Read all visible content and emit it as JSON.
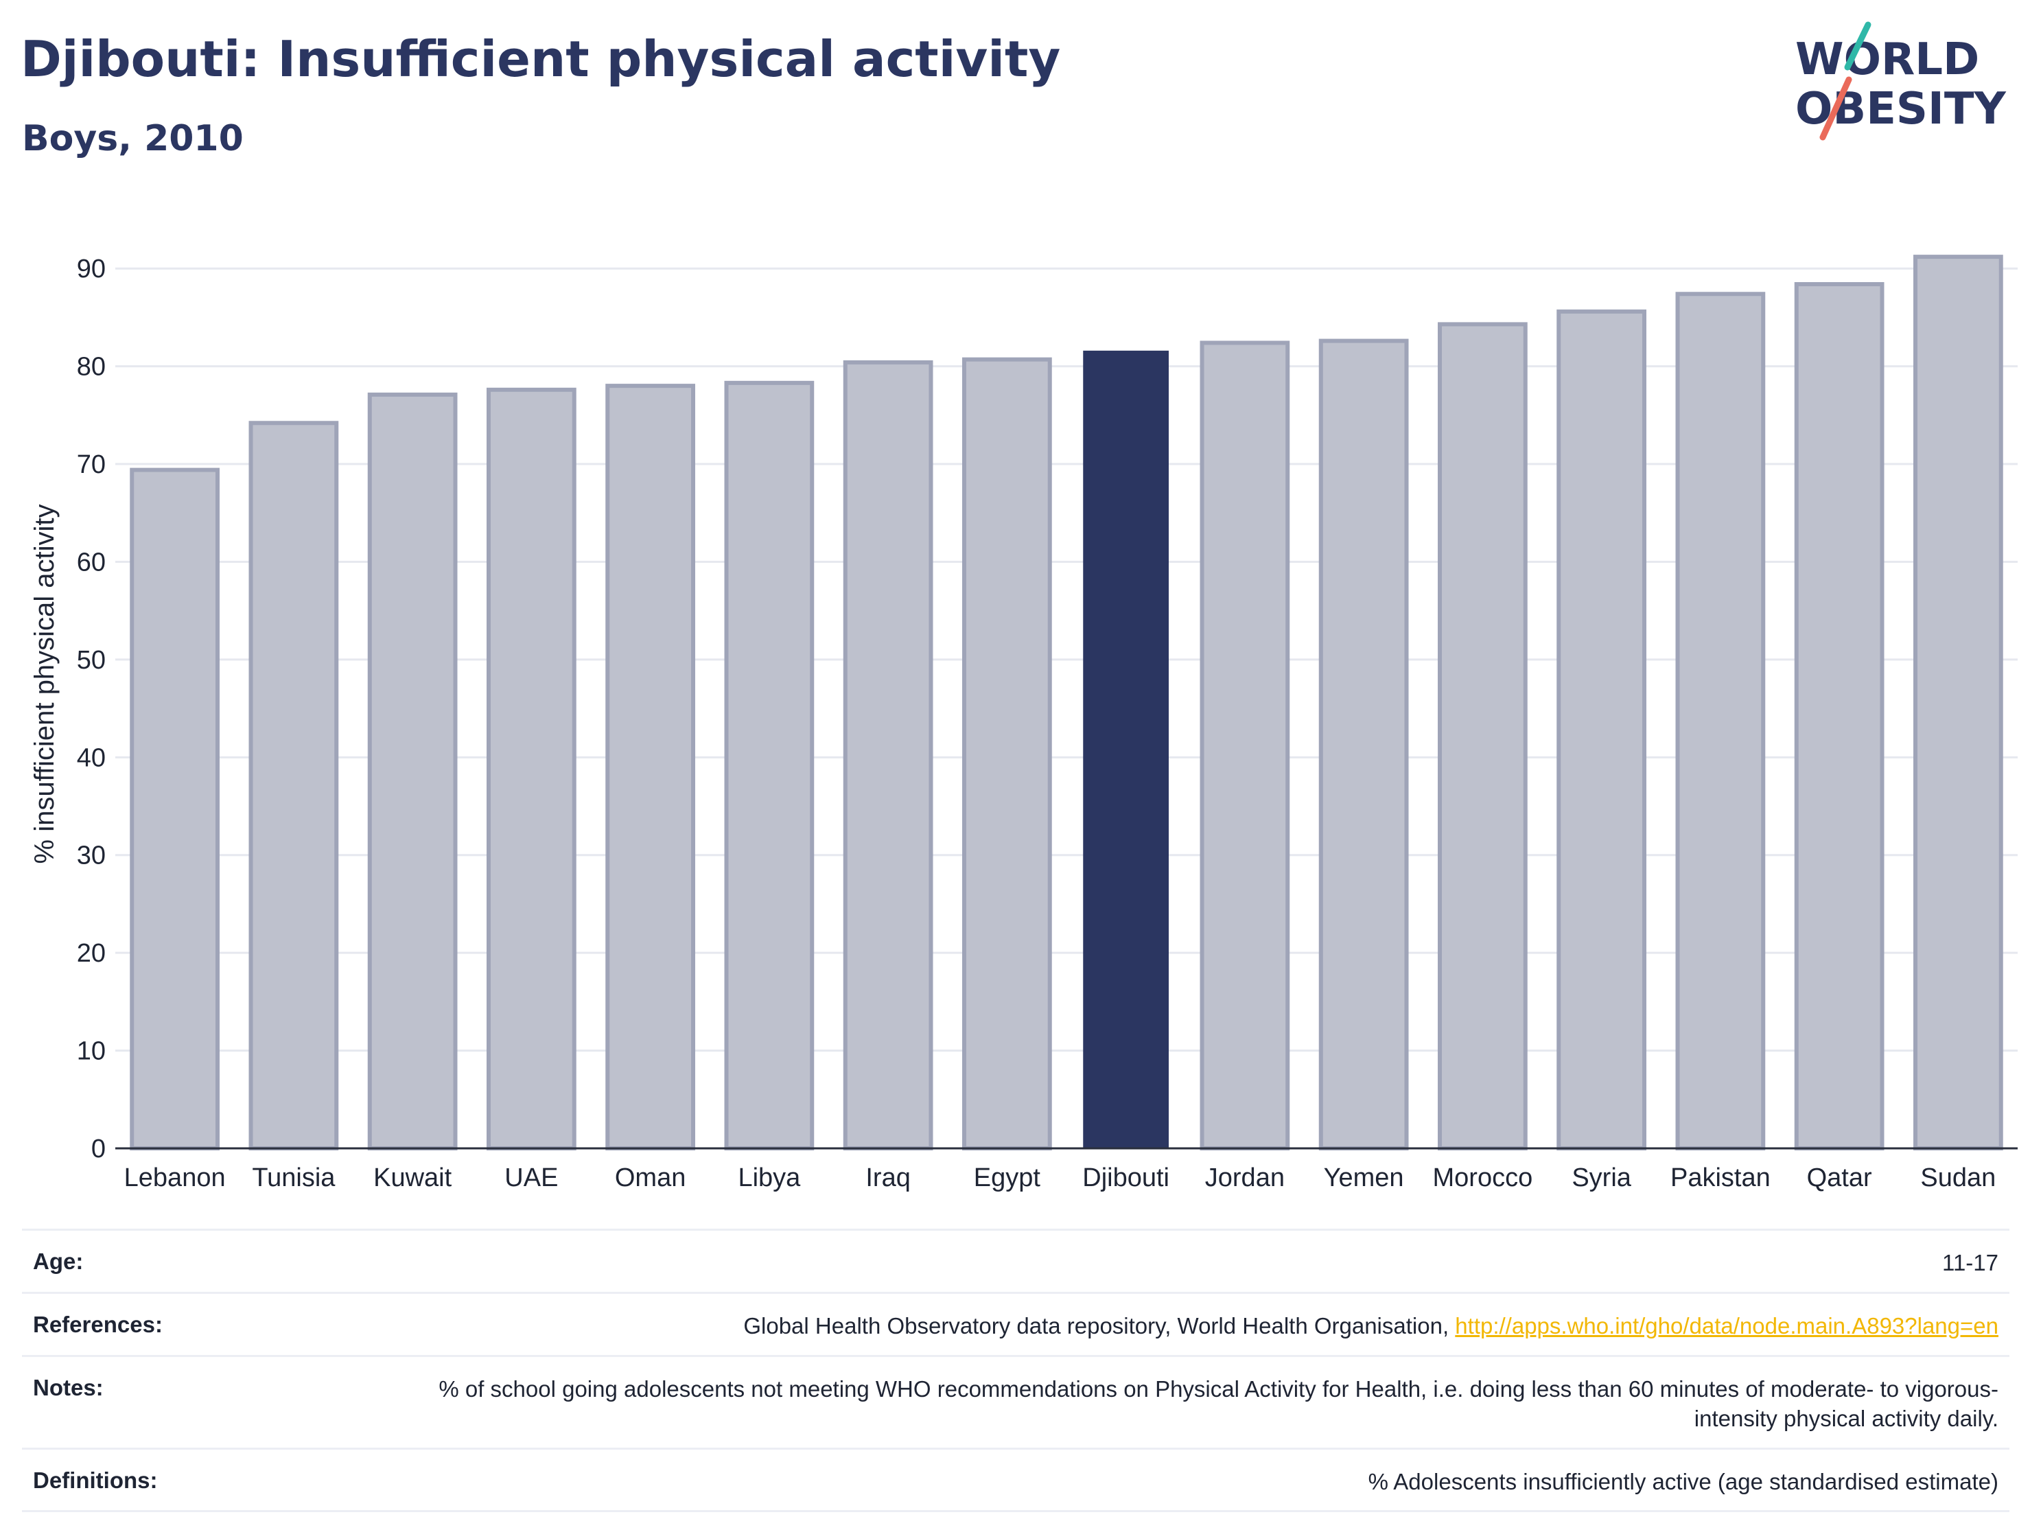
{
  "header": {
    "title": "Djibouti: Insufficient physical activity",
    "subtitle": "Boys, 2010"
  },
  "logo": {
    "line1": "WORLD",
    "line2": "OBESITY"
  },
  "chart_data": {
    "type": "bar",
    "ylabel": "% insufficient physical activity",
    "ylim": [
      0,
      95
    ],
    "yticks": [
      0,
      10,
      20,
      30,
      40,
      50,
      60,
      70,
      80,
      90
    ],
    "categories": [
      "Lebanon",
      "Tunisia",
      "Kuwait",
      "UAE",
      "Oman",
      "Libya",
      "Iraq",
      "Egypt",
      "Djibouti",
      "Jordan",
      "Yemen",
      "Morocco",
      "Syria",
      "Pakistan",
      "Qatar",
      "Sudan"
    ],
    "values": [
      69.4,
      74.2,
      77.1,
      77.6,
      78.0,
      78.3,
      80.4,
      80.7,
      81.6,
      82.4,
      82.6,
      84.3,
      85.6,
      87.4,
      88.4,
      91.2
    ],
    "highlight": "Djibouti",
    "colors": {
      "highlight": "#2b3661",
      "default_fill": "#bec1cd",
      "default_stroke": "#9fa4b8"
    },
    "grid": true
  },
  "meta": [
    {
      "label": "Age:",
      "value": "11-17"
    },
    {
      "label": "References:",
      "value": "Global Health Observatory data repository, World Health Organisation, ",
      "link": "http://apps.who.int/gho/data/node.main.A893?lang=en"
    },
    {
      "label": "Notes:",
      "value": "% of school going adolescents not meeting WHO recommendations on Physical Activity for Health, i.e. doing less than 60 minutes of moderate- to vigorous-intensity physical activity daily."
    },
    {
      "label": "Definitions:",
      "value": "% Adolescents insufficiently active (age standardised estimate)"
    }
  ]
}
